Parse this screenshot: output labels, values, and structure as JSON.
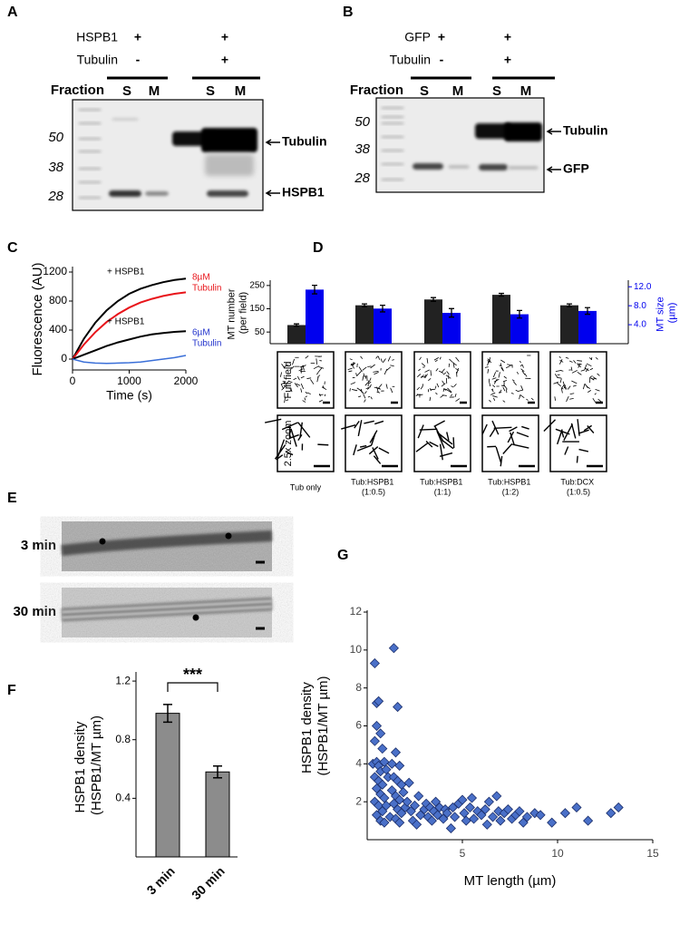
{
  "panels": {
    "A": {
      "label": "A",
      "rows": [
        {
          "name": "HSPB1",
          "marks": [
            "+",
            "+"
          ]
        },
        {
          "name": "Tubulin",
          "marks": [
            "-",
            "+"
          ]
        }
      ],
      "fraction": "Fraction",
      "lanes": [
        "S",
        "M",
        "S",
        "M"
      ],
      "markers": [
        "50",
        "38",
        "28"
      ],
      "bands": [
        "Tubulin",
        "HSPB1"
      ]
    },
    "B": {
      "label": "B",
      "rows": [
        {
          "name": "GFP",
          "marks": [
            "+",
            "+"
          ]
        },
        {
          "name": "Tubulin",
          "marks": [
            "-",
            "+"
          ]
        }
      ],
      "fraction": "Fraction",
      "lanes": [
        "S",
        "M",
        "S",
        "M"
      ],
      "markers": [
        "50",
        "38",
        "28"
      ],
      "bands": [
        "Tubulin",
        "GFP"
      ]
    },
    "E": {
      "label": "E",
      "rows": [
        "3 min",
        "30 min"
      ]
    }
  },
  "chart_data": [
    {
      "type": "line",
      "panel_label": "C",
      "x": [
        0,
        200,
        400,
        600,
        800,
        1000,
        1200,
        1400,
        1600,
        1800,
        2000
      ],
      "series": [
        {
          "color": "#000000",
          "values": [
            0,
            280,
            500,
            670,
            800,
            900,
            970,
            1020,
            1060,
            1090,
            1110
          ]
        },
        {
          "color": "#e8141a",
          "values": [
            0,
            200,
            370,
            510,
            620,
            710,
            780,
            830,
            870,
            900,
            920
          ]
        },
        {
          "color": "#000000",
          "values": [
            0,
            60,
            120,
            180,
            230,
            270,
            310,
            340,
            360,
            375,
            385
          ]
        },
        {
          "color": "#3a6fd8",
          "values": [
            0,
            -40,
            -55,
            -60,
            -55,
            -50,
            -40,
            -20,
            0,
            20,
            50
          ]
        }
      ],
      "annotations": [
        {
          "text": "+ HSPB1",
          "color": "#000000"
        },
        {
          "text": "8µM",
          "color": "#e8141a"
        },
        {
          "text": "Tubulin",
          "color": "#e8141a"
        },
        {
          "text": "+ HSPB1",
          "color": "#000000"
        },
        {
          "text": "6µM",
          "color": "#2233cc"
        },
        {
          "text": "Tubulin",
          "color": "#2233cc"
        }
      ],
      "xlim": [
        0,
        2000
      ],
      "ylim": [
        -150,
        1250
      ],
      "xticks": [
        0,
        1000,
        2000
      ],
      "yticks": [
        0,
        400,
        800,
        1200
      ],
      "xlabel": "Time (s)",
      "ylabel": "Fluorescence (AU)"
    },
    {
      "type": "bar",
      "panel_label": "D",
      "categories": [
        "Tub only",
        "Tub:HSPB1 (1:0.5)",
        "Tub:HSPB1 (1:1)",
        "Tub:HSPB1 (1:2)",
        "Tub:DCX (1:0.5)"
      ],
      "series": [
        {
          "color": "#222222",
          "values": [
            80,
            165,
            190,
            210,
            165
          ],
          "errors": [
            5,
            6,
            8,
            6,
            6
          ]
        },
        {
          "color": "#0000ee",
          "axis": "y2",
          "values": [
            11.4,
            7.4,
            6.5,
            6.2,
            6.9
          ],
          "errors": [
            0.9,
            0.7,
            0.9,
            0.8,
            0.7
          ]
        }
      ],
      "ylim": [
        0,
        265
      ],
      "yticks": [
        50,
        150,
        250
      ],
      "y2lim": [
        0,
        13
      ],
      "y2ticks": [
        {
          "value": 4,
          "label": "4.0"
        },
        {
          "value": 8,
          "label": "8.0"
        },
        {
          "value": 12,
          "label": "12.0"
        }
      ],
      "ylabel": "MT number (per field)",
      "y2label": "MT size (µm)",
      "row_labels": [
        "Full field",
        "2.5x zoom"
      ]
    },
    {
      "type": "bar",
      "panel_label": "F",
      "categories": [
        "3 min",
        "30 min"
      ],
      "values": [
        0.98,
        0.58
      ],
      "errors": [
        0.06,
        0.04
      ],
      "color": "#8c8c8c",
      "ylim": [
        0,
        1.25
      ],
      "yticks": [
        0.4,
        0.8,
        1.2
      ],
      "ylabel": "HSPB1 density (HSPB1/MT µm)",
      "significance": "***"
    },
    {
      "type": "scatter",
      "panel_label": "G",
      "color": "#4a70c8",
      "x": [
        0.4,
        0.5,
        0.6,
        0.5,
        0.7,
        0.4,
        0.8,
        0.3,
        0.5,
        0.6,
        0.7,
        0.9,
        1.0,
        0.4,
        0.6,
        0.8,
        1.1,
        0.5,
        0.7,
        0.9,
        0.4,
        0.6,
        0.8,
        1.0,
        0.5,
        0.7,
        0.9,
        1.2,
        1.4,
        1.6,
        1.5,
        1.3,
        1.7,
        1.4,
        1.6,
        1.8,
        1.3,
        1.5,
        1.7,
        1.9,
        1.4,
        1.6,
        1.8,
        2.0,
        1.5,
        1.7,
        2.1,
        2.2,
        2.3,
        2.4,
        2.5,
        2.6,
        2.7,
        2.8,
        3.0,
        3.1,
        3.2,
        3.3,
        3.4,
        3.5,
        3.6,
        3.7,
        3.8,
        4.0,
        4.1,
        4.2,
        4.4,
        4.5,
        4.6,
        4.8,
        5.0,
        5.1,
        5.2,
        5.4,
        5.5,
        5.6,
        5.8,
        6.0,
        6.2,
        6.3,
        6.4,
        6.6,
        6.8,
        6.9,
        7.0,
        7.2,
        7.4,
        7.6,
        7.8,
        8.0,
        8.2,
        8.4,
        8.8,
        9.1,
        9.7,
        10.4,
        11.0,
        11.6,
        12.8,
        13.2
      ],
      "values": [
        9.3,
        7.2,
        7.3,
        6.0,
        5.6,
        5.2,
        4.8,
        4.0,
        4.1,
        3.9,
        3.6,
        4.1,
        3.7,
        3.3,
        3.1,
        2.9,
        3.3,
        2.7,
        2.4,
        2.2,
        2.0,
        1.8,
        1.5,
        1.8,
        1.3,
        1.0,
        0.9,
        1.2,
        10.1,
        7.0,
        4.6,
        4.0,
        3.9,
        3.3,
        3.1,
        2.9,
        2.6,
        2.3,
        2.1,
        2.5,
        1.9,
        1.6,
        1.4,
        1.7,
        1.1,
        0.9,
        2.0,
        3.0,
        1.5,
        1.0,
        1.8,
        0.8,
        2.3,
        1.3,
        1.6,
        1.9,
        1.2,
        1.7,
        1.0,
        1.5,
        2.0,
        1.3,
        1.7,
        1.1,
        1.6,
        1.4,
        0.6,
        1.7,
        1.2,
        1.9,
        2.1,
        1.4,
        1.0,
        1.7,
        2.2,
        1.1,
        1.5,
        1.3,
        1.6,
        0.8,
        2.0,
        1.2,
        2.3,
        1.5,
        1.0,
        1.4,
        1.6,
        1.1,
        1.3,
        1.5,
        0.9,
        1.2,
        1.4,
        1.3,
        0.9,
        1.4,
        1.7,
        1.0,
        1.4,
        1.7
      ],
      "xlim": [
        0,
        15
      ],
      "ylim": [
        0,
        12
      ],
      "xticks": [
        5,
        10,
        15
      ],
      "yticks": [
        2,
        4,
        6,
        8,
        10,
        12
      ],
      "xlabel": "MT length (µm)",
      "ylabel": "HSPB1 density (HSPB1/MT µm)"
    }
  ]
}
